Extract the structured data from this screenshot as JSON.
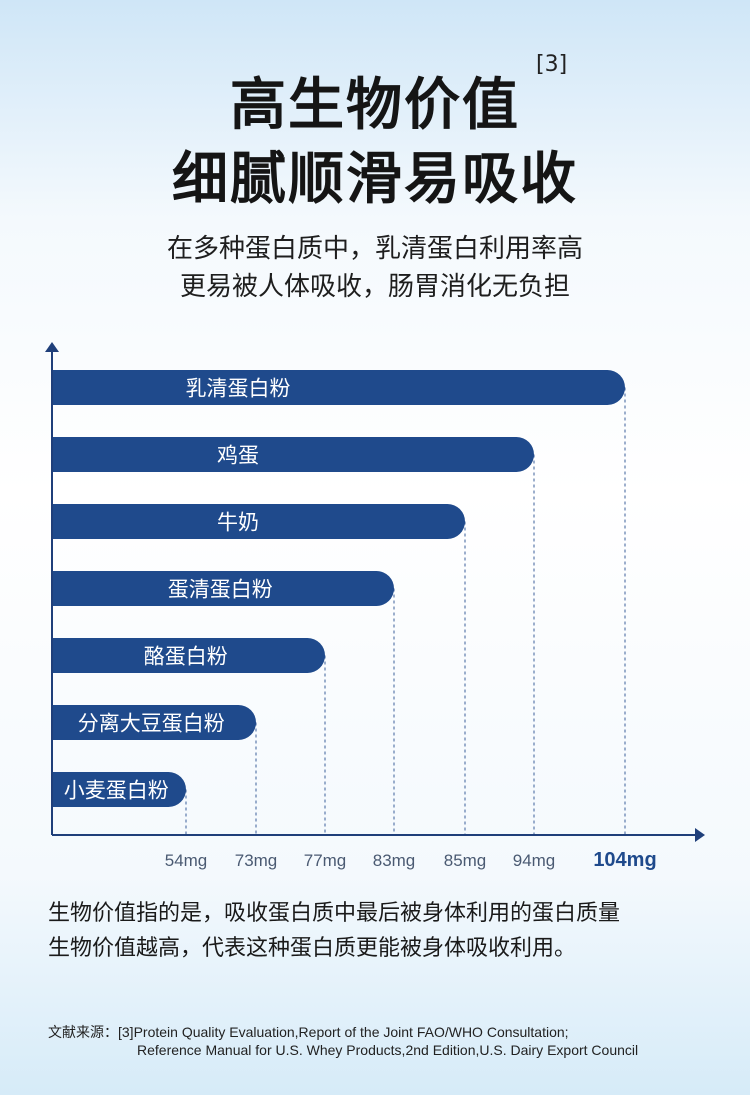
{
  "header": {
    "title_line1": "高生物价值",
    "title_ref": "[3]",
    "title_line2": "细腻顺滑易吸收",
    "subtitle_line1": "在多种蛋白质中，乳清蛋白利用率高",
    "subtitle_line2": "更易被人体吸收，肠胃消化无负担"
  },
  "chart_data": {
    "type": "bar",
    "orientation": "horizontal",
    "categories": [
      "乳清蛋白粉",
      "鸡蛋",
      "牛奶",
      "蛋清蛋白粉",
      "酪蛋白粉",
      "分离大豆蛋白粉",
      "小麦蛋白粉"
    ],
    "values": [
      104,
      94,
      85,
      83,
      77,
      73,
      54
    ],
    "tick_labels": [
      "54mg",
      "73mg",
      "77mg",
      "83mg",
      "85mg",
      "94mg",
      "104mg"
    ],
    "highlight_tick": "104mg",
    "grid": "dashed drop lines at bar ends",
    "bar_color": "#1f4a8c",
    "axis_color": "#1f3f7a",
    "highlight_color": "#1f4a8c"
  },
  "footer": {
    "desc_line1": "生物价值指的是，吸收蛋白质中最后被身体利用的蛋白质量",
    "desc_line2": "生物价值越高，代表这种蛋白质更能被身体吸收利用。",
    "ref_line1": "文献来源：[3]Protein Quality Evaluation,Report of the Joint FAO/WHO Consultation;",
    "ref_line2": "Reference Manual for U.S. Whey Products,2nd Edition,U.S. Dairy Export Council"
  }
}
